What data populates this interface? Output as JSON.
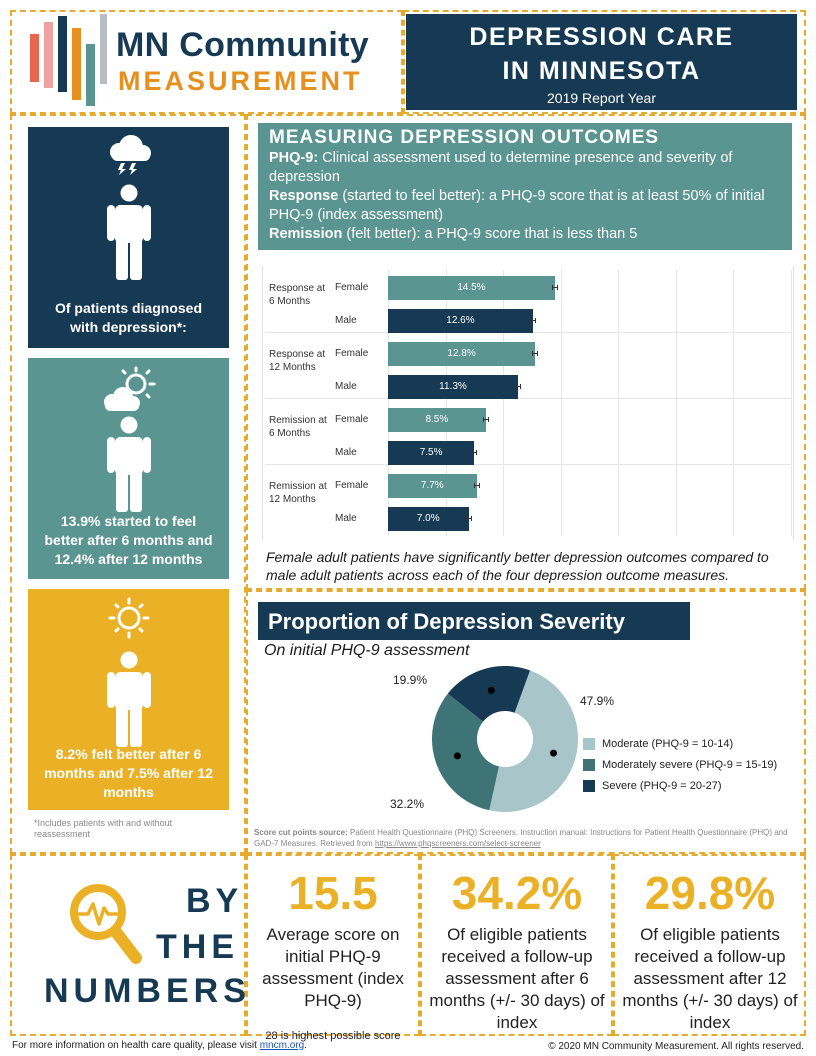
{
  "header": {
    "logo_line1": "MN Community",
    "logo_line2": "MEASUREMENT",
    "title_line1": "DEPRESSION CARE",
    "title_line2": "IN MINNESOTA",
    "report_year": "2019 Report Year"
  },
  "left": {
    "panel1_text": "Of patients diagnosed with depression*:",
    "panel2_text": "13.9%  started to feel better after 6 months and 12.4% after 12 months",
    "panel3_text": "8.2%  felt better after 6 months and 7.5% after 12 months",
    "footnote": "*Includes patients with and without reassessment"
  },
  "outcomes": {
    "title": "MEASURING DEPRESSION OUTCOMES",
    "phq_term": "PHQ-9:",
    "phq_def": " Clinical assessment used to determine presence and severity of depression",
    "response_term": "Response",
    "response_def": " (started to feel better): a PHQ-9 score that is at least 50% of initial PHQ-9 (index assessment)",
    "remission_term": "Remission",
    "remission_def": " (felt better): a PHQ-9 score that is less than 5"
  },
  "chart_data": [
    {
      "type": "bar",
      "orientation": "horizontal",
      "categories": [
        "Response at 6 Months",
        "Response at 12 Months",
        "Remission at 6 Months",
        "Remission at 12 Months"
      ],
      "series": [
        {
          "name": "Female",
          "values": [
            14.5,
            12.8,
            8.5,
            7.7
          ],
          "labels": [
            "14.5%",
            "12.8%",
            "8.5%",
            "7.7%"
          ],
          "color": "#5b9592"
        },
        {
          "name": "Male",
          "values": [
            12.6,
            11.3,
            7.5,
            7.0
          ],
          "labels": [
            "12.6%",
            "11.3%",
            "7.5%",
            "7.0%"
          ],
          "color": "#173a54"
        }
      ],
      "category_line1": [
        "Response at",
        "Response at",
        "Remission at",
        "Remission at"
      ],
      "category_line2": [
        "6 Months",
        "12 Months",
        "6 Months",
        "12 Months"
      ],
      "error_bars": true,
      "xlim": [
        0,
        35
      ]
    },
    {
      "type": "pie",
      "donut": true,
      "title": "Proportion of Depression Severity",
      "subtitle": "On initial PHQ-9 assessment",
      "slices": [
        {
          "name": "Moderate (PHQ-9 = 10-14)",
          "value": 47.9,
          "label": "47.9%",
          "color": "#a8c6c9"
        },
        {
          "name": "Moderately severe (PHQ-9 = 15-19)",
          "value": 32.2,
          "label": "32.2%",
          "color": "#3e7476"
        },
        {
          "name": "Severe (PHQ-9 = 20-27)",
          "value": 19.9,
          "label": "19.9%",
          "color": "#173a54"
        }
      ]
    }
  ],
  "chart_note": "Female adult patients have significantly better depression outcomes compared to male adult patients across each of the four depression outcome measures.",
  "source": {
    "label": "Score cut points source:",
    "text": " Patient Health Questionnaire (PHQ) Screeners.  Instruction  manual: Instructions  for Patient Health Questionnaire (PHQ) and GAD-7 Measures. Retrieved  from ",
    "link": "https://www.phqscreeners.com/select-screener"
  },
  "numbers": {
    "by1": "BY",
    "by2": "THE",
    "by3": "NUMBERS",
    "stat1_value": "15.5",
    "stat1_text": "Average score on initial PHQ-9 assessment (index PHQ-9)",
    "stat1_note": "28 is highest possible score",
    "stat2_value": "34.2%",
    "stat2_text": "Of eligible patients received a follow-up assessment after 6 months (+/- 30 days) of index",
    "stat3_value": "29.8%",
    "stat3_text": "Of eligible patients received a follow-up assessment after 12 months  (+/- 30 days) of index"
  },
  "footer": {
    "left_text": "For more information on health care quality, please visit ",
    "link": "mncm.org",
    "left_end": ".",
    "right": "© 2020  MN Community Measurement. All rights reserved."
  },
  "colors": {
    "navy": "#173a54",
    "teal": "#5b9592",
    "gold": "#ebb126",
    "orange": "#e6911f"
  }
}
